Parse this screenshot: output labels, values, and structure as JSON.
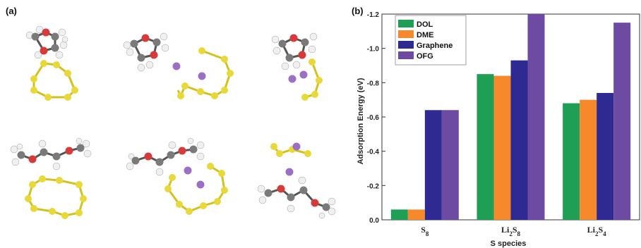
{
  "panels": {
    "a_label": "(a)",
    "b_label": "(b)"
  },
  "colors": {
    "sulfur": "#e8d838",
    "lithium": "#9b6fc4",
    "carbon": "#7a7a7a",
    "oxygen": "#d83a3a",
    "hydrogen": "#f0f0f0",
    "DOL": "#1f9e55",
    "DME": "#f7892d",
    "Graphene": "#2e2a92",
    "OFG": "#6d4ba3"
  },
  "chart_data": {
    "type": "bar",
    "categories": [
      "S8",
      "Li2S8",
      "Li2S4"
    ],
    "category_parts": [
      [
        {
          "t": "S",
          "sub": false
        },
        {
          "t": "8",
          "sub": true
        }
      ],
      [
        {
          "t": "Li",
          "sub": false
        },
        {
          "t": "2",
          "sub": true
        },
        {
          "t": "S",
          "sub": false
        },
        {
          "t": "8",
          "sub": true
        }
      ],
      [
        {
          "t": "Li",
          "sub": false
        },
        {
          "t": "2",
          "sub": true
        },
        {
          "t": "S",
          "sub": false
        },
        {
          "t": "4",
          "sub": true
        }
      ]
    ],
    "series": [
      {
        "name": "DOL",
        "color": "#1f9e55",
        "values": [
          -0.06,
          -0.85,
          -0.68
        ]
      },
      {
        "name": "DME",
        "color": "#f7892d",
        "values": [
          -0.06,
          -0.84,
          -0.7
        ]
      },
      {
        "name": "Graphene",
        "color": "#2e2a92",
        "values": [
          -0.64,
          -0.93,
          -0.74
        ]
      },
      {
        "name": "OFG",
        "color": "#6d4ba3",
        "values": [
          -0.64,
          -1.2,
          -1.15
        ]
      }
    ],
    "xlabel": "S species",
    "ylabel": "Adsorption Energy (eV)",
    "ylim": [
      0.0,
      -1.2
    ],
    "yticks": [
      "-1.2",
      "-1.0",
      "-0.8",
      "-0.6",
      "-0.4",
      "-0.2",
      "0.0"
    ],
    "ytick_values": [
      -1.2,
      -1.0,
      -0.8,
      -0.6,
      -0.4,
      -0.2,
      0.0
    ],
    "y_axis_inverted": true,
    "legend_position": "top-left"
  }
}
